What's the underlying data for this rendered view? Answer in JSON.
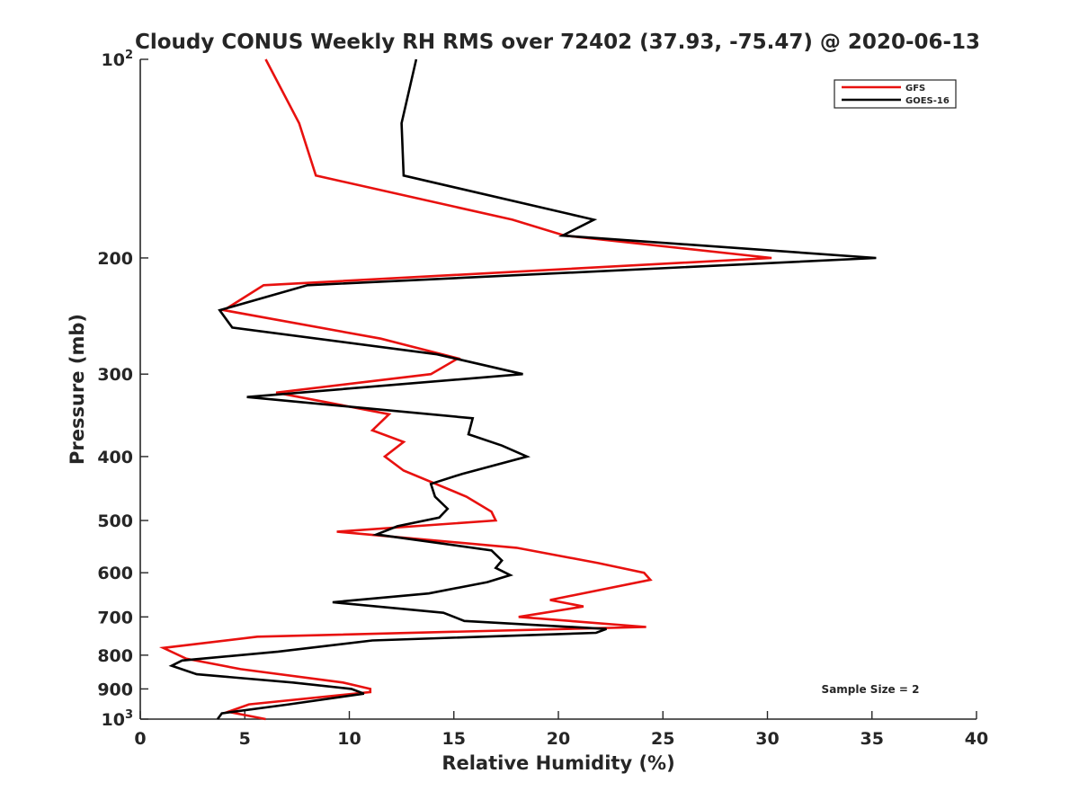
{
  "chart_data": {
    "type": "line",
    "title": "Cloudy CONUS Weekly RH RMS over 72402 (37.93, -75.47) @ 2020-06-13",
    "xlabel": "Relative Humidity (%)",
    "ylabel": "Pressure (mb)",
    "xlim": [
      0,
      40
    ],
    "ylim": [
      100,
      1000
    ],
    "yscale": "log",
    "y_reversed": true,
    "grid": false,
    "legend_position": "top-right",
    "x_ticks": [
      0,
      5,
      10,
      15,
      20,
      25,
      30,
      35,
      40
    ],
    "x_tick_labels": [
      "0",
      "5",
      "10",
      "15",
      "20",
      "25",
      "30",
      "35",
      "40"
    ],
    "y_ticks": [
      100,
      200,
      300,
      400,
      500,
      600,
      700,
      800,
      900,
      1000
    ],
    "y_tick_labels": [
      {
        "base": "10",
        "sup": "2"
      },
      {
        "base": "200",
        "sup": ""
      },
      {
        "base": "300",
        "sup": ""
      },
      {
        "base": "400",
        "sup": ""
      },
      {
        "base": "500",
        "sup": ""
      },
      {
        "base": "600",
        "sup": ""
      },
      {
        "base": "700",
        "sup": ""
      },
      {
        "base": "800",
        "sup": ""
      },
      {
        "base": "900",
        "sup": ""
      },
      {
        "base": "10",
        "sup": "3"
      }
    ],
    "annotations": [
      "Sample Size = 2"
    ],
    "series": [
      {
        "name": "GFS",
        "color": "#e8110f",
        "points": [
          {
            "x": 6.0,
            "y": 100
          },
          {
            "x": 7.6,
            "y": 125
          },
          {
            "x": 8.4,
            "y": 150
          },
          {
            "x": 17.8,
            "y": 175
          },
          {
            "x": 20.3,
            "y": 185
          },
          {
            "x": 30.2,
            "y": 200
          },
          {
            "x": 5.9,
            "y": 220
          },
          {
            "x": 4.0,
            "y": 240
          },
          {
            "x": 11.5,
            "y": 265
          },
          {
            "x": 15.2,
            "y": 284
          },
          {
            "x": 13.9,
            "y": 300
          },
          {
            "x": 6.5,
            "y": 320
          },
          {
            "x": 11.9,
            "y": 345
          },
          {
            "x": 11.1,
            "y": 365
          },
          {
            "x": 12.6,
            "y": 380
          },
          {
            "x": 11.7,
            "y": 400
          },
          {
            "x": 12.6,
            "y": 420
          },
          {
            "x": 15.6,
            "y": 460
          },
          {
            "x": 16.8,
            "y": 485
          },
          {
            "x": 17.0,
            "y": 500
          },
          {
            "x": 9.4,
            "y": 520
          },
          {
            "x": 18.0,
            "y": 550
          },
          {
            "x": 21.9,
            "y": 580
          },
          {
            "x": 24.1,
            "y": 600
          },
          {
            "x": 24.4,
            "y": 615
          },
          {
            "x": 19.6,
            "y": 660
          },
          {
            "x": 21.2,
            "y": 675
          },
          {
            "x": 18.1,
            "y": 700
          },
          {
            "x": 24.2,
            "y": 725
          },
          {
            "x": 5.6,
            "y": 750
          },
          {
            "x": 1.1,
            "y": 780
          },
          {
            "x": 2.2,
            "y": 810
          },
          {
            "x": 4.8,
            "y": 840
          },
          {
            "x": 9.7,
            "y": 880
          },
          {
            "x": 11.0,
            "y": 900
          },
          {
            "x": 11.0,
            "y": 910
          },
          {
            "x": 5.2,
            "y": 950
          },
          {
            "x": 4.2,
            "y": 975
          },
          {
            "x": 6.0,
            "y": 1000
          }
        ]
      },
      {
        "name": "GOES-16",
        "color": "#000000",
        "points": [
          {
            "x": 13.2,
            "y": 100
          },
          {
            "x": 12.5,
            "y": 125
          },
          {
            "x": 12.6,
            "y": 150
          },
          {
            "x": 21.7,
            "y": 175
          },
          {
            "x": 20.2,
            "y": 185
          },
          {
            "x": 35.2,
            "y": 200
          },
          {
            "x": 8.0,
            "y": 220
          },
          {
            "x": 3.8,
            "y": 240
          },
          {
            "x": 4.4,
            "y": 255
          },
          {
            "x": 14.2,
            "y": 280
          },
          {
            "x": 18.3,
            "y": 300
          },
          {
            "x": 5.1,
            "y": 325
          },
          {
            "x": 15.9,
            "y": 350
          },
          {
            "x": 15.7,
            "y": 370
          },
          {
            "x": 17.3,
            "y": 385
          },
          {
            "x": 18.5,
            "y": 400
          },
          {
            "x": 15.4,
            "y": 425
          },
          {
            "x": 13.9,
            "y": 440
          },
          {
            "x": 14.1,
            "y": 460
          },
          {
            "x": 14.7,
            "y": 480
          },
          {
            "x": 14.3,
            "y": 495
          },
          {
            "x": 12.3,
            "y": 510
          },
          {
            "x": 11.3,
            "y": 525
          },
          {
            "x": 16.8,
            "y": 555
          },
          {
            "x": 17.3,
            "y": 575
          },
          {
            "x": 17.0,
            "y": 590
          },
          {
            "x": 17.7,
            "y": 605
          },
          {
            "x": 16.6,
            "y": 620
          },
          {
            "x": 13.8,
            "y": 645
          },
          {
            "x": 9.2,
            "y": 665
          },
          {
            "x": 14.5,
            "y": 690
          },
          {
            "x": 15.5,
            "y": 710
          },
          {
            "x": 22.3,
            "y": 730
          },
          {
            "x": 21.8,
            "y": 740
          },
          {
            "x": 11.1,
            "y": 760
          },
          {
            "x": 6.6,
            "y": 790
          },
          {
            "x": 2.0,
            "y": 815
          },
          {
            "x": 1.5,
            "y": 830
          },
          {
            "x": 2.7,
            "y": 855
          },
          {
            "x": 7.3,
            "y": 880
          },
          {
            "x": 10.1,
            "y": 900
          },
          {
            "x": 10.7,
            "y": 915
          },
          {
            "x": 7.1,
            "y": 950
          },
          {
            "x": 3.9,
            "y": 980
          },
          {
            "x": 3.7,
            "y": 1000
          }
        ]
      }
    ]
  }
}
